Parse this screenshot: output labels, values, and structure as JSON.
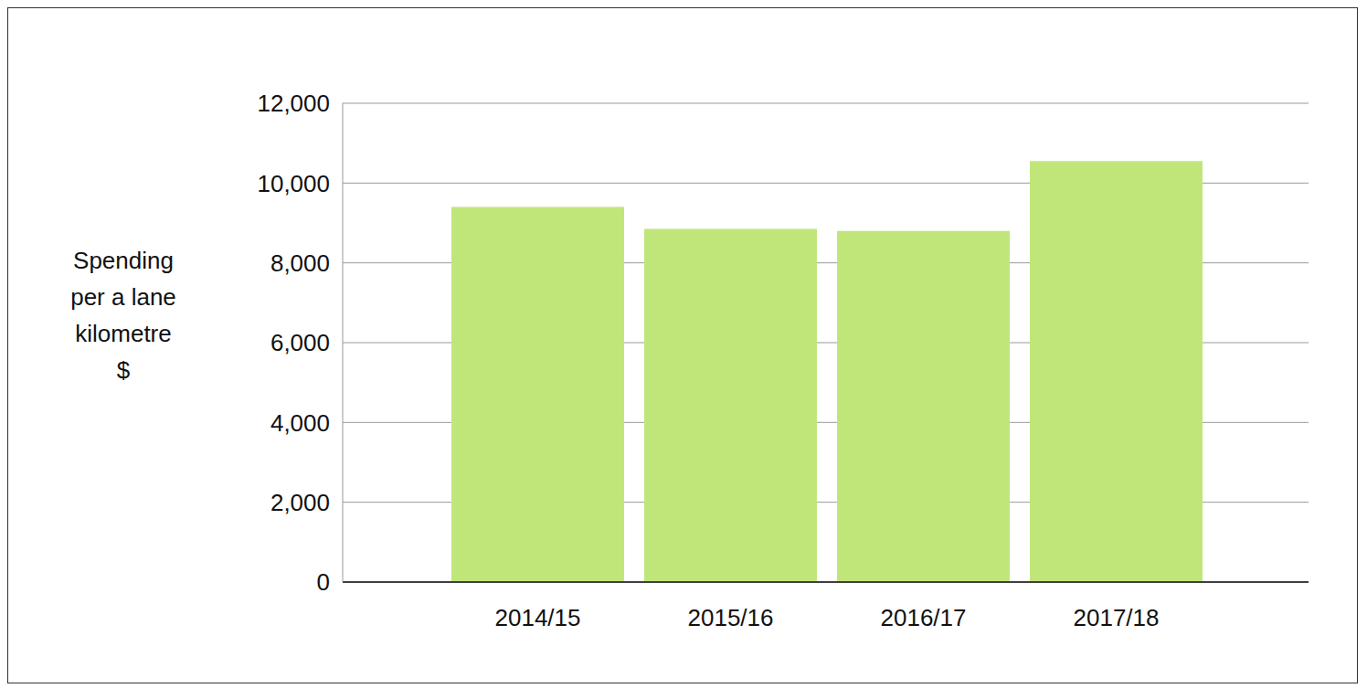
{
  "chart_data": {
    "type": "bar",
    "y_label": [
      "Spending",
      "per a lane",
      "kilometre",
      "$"
    ],
    "categories": [
      "2014/15",
      "2015/16",
      "2016/17",
      "2017/18"
    ],
    "values": [
      9400,
      8850,
      8800,
      10550
    ],
    "color": "#c0e67a",
    "ylim": [
      0,
      12000
    ],
    "yticks": [
      0,
      {
        "value": 2000,
        "label": "2,000"
      },
      {
        "value": 4000,
        "label": "4,000"
      },
      {
        "value": 6000,
        "label": "6,000"
      },
      {
        "value": 8000,
        "label": "8,000"
      },
      {
        "value": 10000,
        "label": "10,000"
      },
      {
        "value": 12000,
        "label": "12,000"
      }
    ],
    "grid": true
  }
}
